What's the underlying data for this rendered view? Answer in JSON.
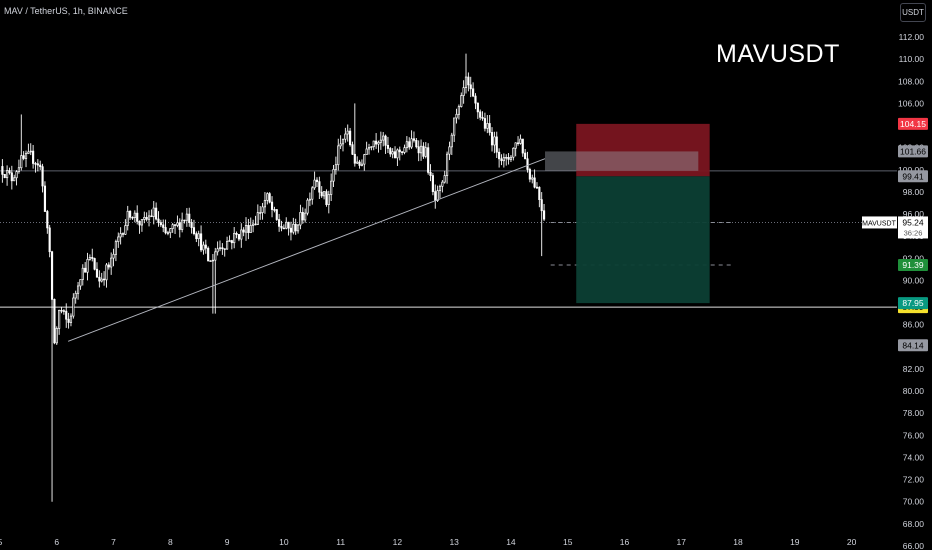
{
  "header": {
    "symbol_info": "MAV / TetherUS, 1h, BINANCE",
    "currency_button": "USDT",
    "watermark": "MAVUSDT"
  },
  "colors": {
    "background": "#000000",
    "candle": "#ffffff",
    "loss_zone": "#7a1520",
    "profit_zone": "#0c3f34",
    "stop_label": "#f23645",
    "target_label": "#089981",
    "tp_label": "#1f8f3a",
    "support_label": "#f5e12d"
  },
  "chart_data": {
    "type": "candlestick",
    "symbol": "MAVUSDT",
    "timeframe": "1h",
    "y_axis": {
      "min": 66,
      "max": 112,
      "ticks": [
        66,
        68,
        70,
        72,
        74,
        76,
        78,
        80,
        82,
        84,
        86,
        88,
        90,
        92,
        94,
        96,
        98,
        100,
        102,
        104,
        106,
        108,
        110,
        112
      ],
      "tick_labels": [
        "66.00",
        "68.00",
        "70.00",
        "72.00",
        "74.00",
        "76.00",
        "78.00",
        "80.00",
        "82.00",
        "84.00",
        "86.00",
        "88.00",
        "90.00",
        "92.00",
        "94.00",
        "96.00",
        "98.00",
        "100.00",
        "102.00",
        "104.00",
        "106.00",
        "108.00",
        "110.00",
        "112.00"
      ]
    },
    "x_axis": {
      "min": 5,
      "max": 20.8,
      "ticks": [
        5,
        6,
        7,
        8,
        9,
        10,
        11,
        12,
        13,
        14,
        15,
        16,
        17,
        18,
        19,
        20
      ],
      "tick_labels": [
        "5",
        "6",
        "7",
        "8",
        "9",
        "10",
        "11",
        "12",
        "13",
        "14",
        "15",
        "16",
        "17",
        "18",
        "19",
        "20"
      ]
    },
    "price_path": [
      {
        "x": 5.0,
        "y": 100.3
      },
      {
        "x": 5.2,
        "y": 99.2
      },
      {
        "x": 5.35,
        "y": 100.7
      },
      {
        "x": 5.55,
        "y": 101.2
      },
      {
        "x": 5.7,
        "y": 100.5
      },
      {
        "x": 5.82,
        "y": 95.5
      },
      {
        "x": 5.9,
        "y": 90.5
      },
      {
        "x": 5.95,
        "y": 84.0
      },
      {
        "x": 6.05,
        "y": 87.5
      },
      {
        "x": 6.2,
        "y": 86.0
      },
      {
        "x": 6.4,
        "y": 90.5
      },
      {
        "x": 6.6,
        "y": 92.0
      },
      {
        "x": 6.75,
        "y": 90.0
      },
      {
        "x": 6.95,
        "y": 91.5
      },
      {
        "x": 7.1,
        "y": 94.0
      },
      {
        "x": 7.3,
        "y": 96.3
      },
      {
        "x": 7.5,
        "y": 95.0
      },
      {
        "x": 7.7,
        "y": 96.2
      },
      {
        "x": 7.9,
        "y": 94.0
      },
      {
        "x": 8.1,
        "y": 94.8
      },
      {
        "x": 8.3,
        "y": 96.0
      },
      {
        "x": 8.5,
        "y": 93.8
      },
      {
        "x": 8.7,
        "y": 91.5
      },
      {
        "x": 8.8,
        "y": 92.8
      },
      {
        "x": 9.0,
        "y": 93.5
      },
      {
        "x": 9.3,
        "y": 94.5
      },
      {
        "x": 9.5,
        "y": 95.5
      },
      {
        "x": 9.7,
        "y": 97.5
      },
      {
        "x": 9.9,
        "y": 95.0
      },
      {
        "x": 10.15,
        "y": 94.5
      },
      {
        "x": 10.35,
        "y": 96.0
      },
      {
        "x": 10.55,
        "y": 99.5
      },
      {
        "x": 10.75,
        "y": 97.0
      },
      {
        "x": 10.95,
        "y": 101.5
      },
      {
        "x": 11.1,
        "y": 103.5
      },
      {
        "x": 11.3,
        "y": 100.0
      },
      {
        "x": 11.5,
        "y": 102.5
      },
      {
        "x": 11.7,
        "y": 103.0
      },
      {
        "x": 11.9,
        "y": 101.0
      },
      {
        "x": 12.1,
        "y": 102.0
      },
      {
        "x": 12.3,
        "y": 102.5
      },
      {
        "x": 12.5,
        "y": 101.5
      },
      {
        "x": 12.65,
        "y": 97.0
      },
      {
        "x": 12.8,
        "y": 98.5
      },
      {
        "x": 12.95,
        "y": 103.5
      },
      {
        "x": 13.1,
        "y": 105.5
      },
      {
        "x": 13.2,
        "y": 108.0
      },
      {
        "x": 13.35,
        "y": 106.0
      },
      {
        "x": 13.5,
        "y": 104.5
      },
      {
        "x": 13.7,
        "y": 102.5
      },
      {
        "x": 13.9,
        "y": 100.5
      },
      {
        "x": 14.05,
        "y": 102.0
      },
      {
        "x": 14.15,
        "y": 103.0
      },
      {
        "x": 14.3,
        "y": 100.0
      },
      {
        "x": 14.45,
        "y": 98.5
      },
      {
        "x": 14.55,
        "y": 96.5
      },
      {
        "x": 14.62,
        "y": 95.2
      }
    ],
    "trendline": {
      "from": {
        "x": 6.2,
        "y": 84.5
      },
      "to": {
        "x": 14.6,
        "y": 101.0
      }
    },
    "support_level": 87.59,
    "resistance_level": 99.9,
    "position": {
      "side": "short",
      "x_start": 15.15,
      "x_end": 17.5,
      "entry": 99.41,
      "stop": 104.15,
      "target": 87.95
    },
    "supply_zone": {
      "x_start": 14.6,
      "x_end": 17.3,
      "top": 101.66,
      "bottom": 99.9
    },
    "dashed_levels": [
      {
        "y": 95.24,
        "x_start": 14.7,
        "x_end": 17.9
      },
      {
        "y": 91.39,
        "x_start": 14.7,
        "x_end": 17.9
      }
    ],
    "price_labels": {
      "stop": {
        "value": 104.15,
        "text": "104.15"
      },
      "zone": {
        "value": 101.66,
        "text": "101.66"
      },
      "entry": {
        "value": 99.41,
        "text": "99.41"
      },
      "current": {
        "value": 95.24,
        "text": "95.24",
        "symbol": "MAVUSDT",
        "countdown": "36:26"
      },
      "tp": {
        "value": 91.39,
        "text": "91.39"
      },
      "target": {
        "value": 87.95,
        "text": "87.95"
      },
      "support": {
        "value": 87.59,
        "text": "87.59"
      },
      "low": {
        "value": 84.14,
        "text": "84.14"
      }
    }
  }
}
